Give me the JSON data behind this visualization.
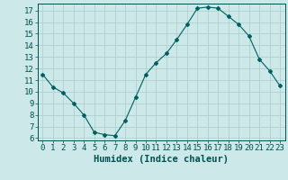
{
  "x": [
    0,
    1,
    2,
    3,
    4,
    5,
    6,
    7,
    8,
    9,
    10,
    11,
    12,
    13,
    14,
    15,
    16,
    17,
    18,
    19,
    20,
    21,
    22,
    23
  ],
  "y": [
    11.5,
    10.4,
    9.9,
    9.0,
    8.0,
    6.5,
    6.3,
    6.2,
    7.5,
    9.5,
    11.5,
    12.5,
    13.3,
    14.5,
    15.8,
    17.2,
    17.3,
    17.2,
    16.5,
    15.8,
    14.8,
    12.8,
    11.8,
    10.5
  ],
  "line_color": "#006060",
  "marker": "D",
  "marker_size": 2,
  "bg_color": "#cce8e8",
  "grid_color": "#aacccc",
  "xlabel": "Humidex (Indice chaleur)",
  "ylim": [
    5.8,
    17.6
  ],
  "xlim": [
    -0.5,
    23.5
  ],
  "yticks": [
    6,
    7,
    8,
    9,
    10,
    11,
    12,
    13,
    14,
    15,
    16,
    17
  ],
  "xticks": [
    0,
    1,
    2,
    3,
    4,
    5,
    6,
    7,
    8,
    9,
    10,
    11,
    12,
    13,
    14,
    15,
    16,
    17,
    18,
    19,
    20,
    21,
    22,
    23
  ],
  "tick_color": "#005050",
  "label_fontsize": 6.5,
  "axis_label_fontsize": 7.5
}
